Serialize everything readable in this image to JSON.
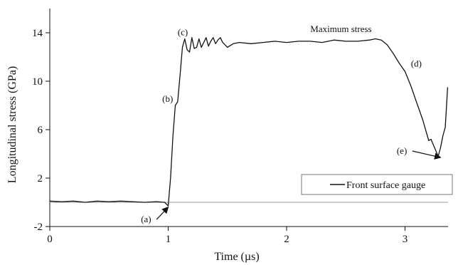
{
  "chart_data": {
    "type": "line",
    "title": "",
    "xlabel": "Time (µs)",
    "ylabel": "Longitudinal stress (GPa)",
    "xlim": [
      0,
      3.3
    ],
    "ylim": [
      -2,
      16
    ],
    "xticks": [
      "0",
      "1",
      "2",
      "3"
    ],
    "yticks": [
      "-2",
      "2",
      "6",
      "10",
      "14"
    ],
    "xtick_values": [
      0,
      1,
      2,
      3
    ],
    "ytick_values": [
      -2,
      2,
      6,
      10,
      14
    ],
    "reference_line_y": 0,
    "grid": false,
    "legend_position": "bottom-right",
    "series": [
      {
        "name": "Front surface gauge",
        "color": "#111111",
        "x": [
          0,
          0.1,
          0.2,
          0.3,
          0.4,
          0.5,
          0.6,
          0.7,
          0.8,
          0.9,
          0.97,
          1.0,
          1.02,
          1.04,
          1.06,
          1.08,
          1.1,
          1.12,
          1.14,
          1.16,
          1.18,
          1.2,
          1.22,
          1.24,
          1.26,
          1.28,
          1.3,
          1.32,
          1.34,
          1.36,
          1.38,
          1.4,
          1.42,
          1.44,
          1.46,
          1.5,
          1.55,
          1.6,
          1.7,
          1.8,
          1.9,
          2.0,
          2.1,
          2.2,
          2.3,
          2.4,
          2.5,
          2.6,
          2.7,
          2.75,
          2.8,
          2.85,
          2.9,
          2.95,
          3.0,
          3.05,
          3.1,
          3.15,
          3.2,
          3.22,
          3.25,
          3.28,
          3.3,
          3.32,
          3.34,
          3.36
        ],
        "y": [
          0.1,
          0.05,
          0.1,
          0.0,
          0.1,
          0.05,
          0.1,
          0.05,
          0.0,
          0.05,
          0.0,
          -0.3,
          2.0,
          5.5,
          8.0,
          8.3,
          10.5,
          12.8,
          13.5,
          12.6,
          12.4,
          13.6,
          12.7,
          12.8,
          13.5,
          12.8,
          13.2,
          13.6,
          12.9,
          13.3,
          13.6,
          13.1,
          13.4,
          13.6,
          13.2,
          12.8,
          13.1,
          13.2,
          13.1,
          13.2,
          13.3,
          13.2,
          13.3,
          13.3,
          13.2,
          13.4,
          13.3,
          13.3,
          13.4,
          13.5,
          13.4,
          13.0,
          12.3,
          11.5,
          10.8,
          9.6,
          8.2,
          6.8,
          5.1,
          5.2,
          4.5,
          3.8,
          4.5,
          5.5,
          6.2,
          9.5
        ]
      }
    ],
    "annotations": [
      {
        "label": "(a)",
        "text_x": 0.77,
        "text_y": -1.65,
        "target_x": 1.0,
        "target_y": -0.4,
        "arrow": true
      },
      {
        "label": "(b)",
        "text_x": 0.95,
        "text_y": 8.3,
        "arrow": false
      },
      {
        "label": "(c)",
        "text_x": 1.08,
        "text_y": 13.8,
        "arrow": false
      },
      {
        "label": "(d)",
        "text_x": 3.05,
        "text_y": 11.2,
        "arrow": false
      },
      {
        "label": "(e)",
        "text_x": 2.93,
        "text_y": 4.0,
        "target_x": 3.3,
        "target_y": 3.7,
        "arrow": true
      },
      {
        "label": "Maximum stress",
        "text_x": 2.2,
        "text_y": 14.05,
        "arrow": false
      }
    ]
  }
}
